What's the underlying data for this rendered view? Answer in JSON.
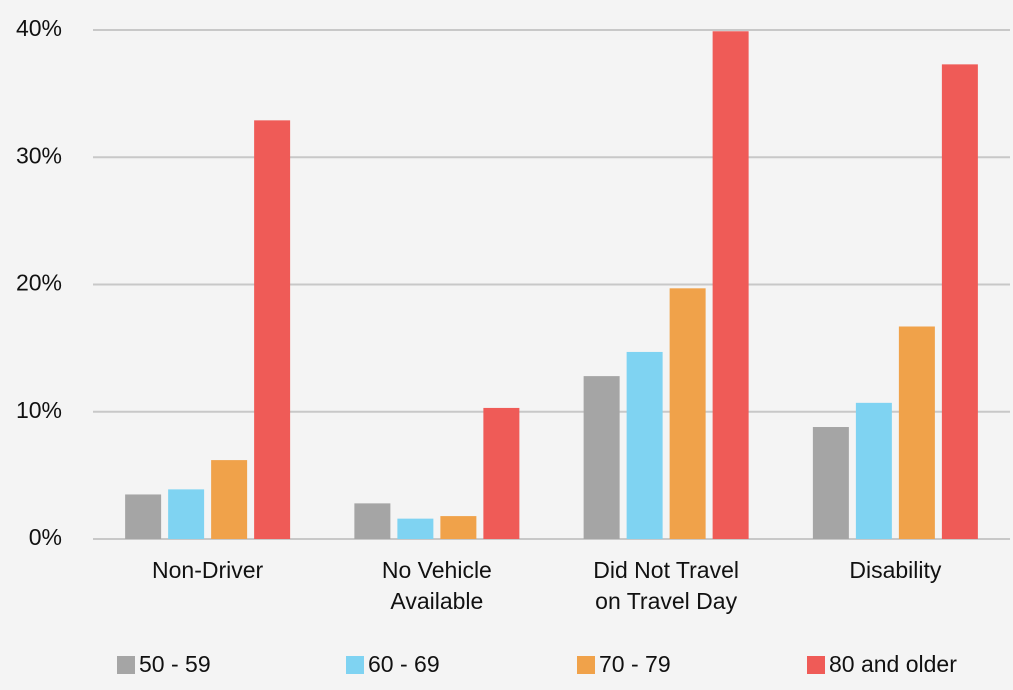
{
  "chart_data": {
    "type": "bar",
    "categories": [
      "Non-Driver",
      "No Vehicle\nAvailable",
      "Did Not Travel\non Travel Day",
      "Disability"
    ],
    "series": [
      {
        "name": "50 - 59",
        "color": "#a5a5a5",
        "values": [
          3.5,
          2.8,
          12.8,
          8.8
        ]
      },
      {
        "name": "60 - 69",
        "color": "#7fd3f2",
        "values": [
          3.9,
          1.6,
          14.7,
          10.7
        ]
      },
      {
        "name": "70 - 79",
        "color": "#f0a24a",
        "values": [
          6.2,
          1.8,
          19.7,
          16.7
        ]
      },
      {
        "name": "80 and older",
        "color": "#ef5b57",
        "values": [
          32.9,
          10.3,
          39.9,
          37.3
        ]
      }
    ],
    "ylim": [
      0,
      40
    ],
    "yticks": [
      {
        "value": 0,
        "label": "0%"
      },
      {
        "value": 10,
        "label": "10%"
      },
      {
        "value": 20,
        "label": "20%"
      },
      {
        "value": 30,
        "label": "30%"
      },
      {
        "value": 40,
        "label": "40%"
      }
    ],
    "grid": true,
    "legend": "bottom"
  }
}
